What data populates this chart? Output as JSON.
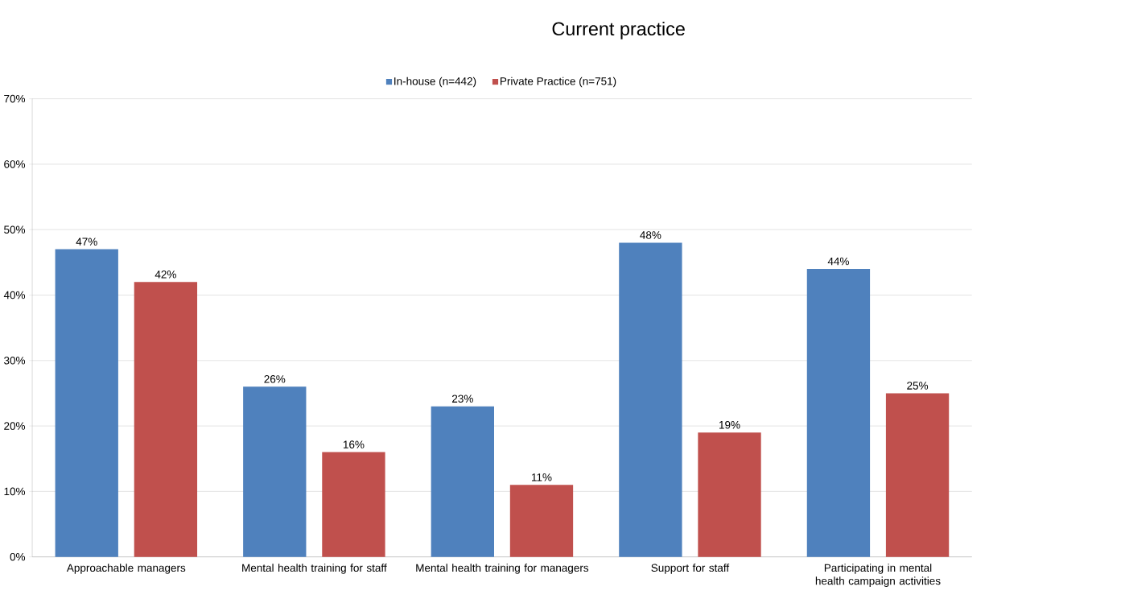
{
  "chart_data": {
    "type": "bar",
    "title": "Current practice",
    "categories": [
      "Approachable managers",
      "Mental health training for staff",
      "Mental health training for managers",
      "Support for staff",
      "Participating in mental health campaign activities"
    ],
    "series": [
      {
        "name": "In-house (n=442)",
        "color": "#4f81bd",
        "values": [
          47,
          26,
          23,
          48,
          44
        ],
        "value_labels": [
          "47%",
          "26%",
          "23%",
          "48%",
          "44%"
        ]
      },
      {
        "name": "Private Practice (n=751)",
        "color": "#c0504d",
        "values": [
          42,
          16,
          11,
          19,
          25
        ],
        "value_labels": [
          "42%",
          "16%",
          "11%",
          "19%",
          "25%"
        ]
      }
    ],
    "ylim": [
      0,
      70
    ],
    "yticks": [
      {
        "value": 0,
        "label": "0%"
      },
      {
        "value": 10,
        "label": "10%"
      },
      {
        "value": 20,
        "label": "20%"
      },
      {
        "value": 30,
        "label": "30%"
      },
      {
        "value": 40,
        "label": "40%"
      },
      {
        "value": 50,
        "label": "50%"
      },
      {
        "value": 60,
        "label": "60%"
      },
      {
        "value": 70,
        "label": "70%"
      }
    ],
    "grid": "y",
    "legend": "top"
  }
}
